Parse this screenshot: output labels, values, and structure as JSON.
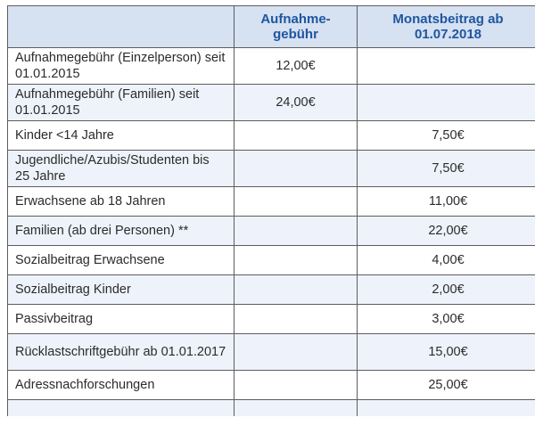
{
  "table": {
    "headers": [
      "",
      "Aufnahme-gebühr",
      "Monatsbeitrag ab 01.07.2018"
    ],
    "rows": [
      {
        "label": "Aufnahmegebühr (Einzelperson) seit 01.01.2015",
        "aufnahme": "12,00€",
        "monat": ""
      },
      {
        "label": "Aufnahmegebühr (Familien) seit 01.01.2015",
        "aufnahme": "24,00€",
        "monat": ""
      },
      {
        "label": "Kinder <14 Jahre",
        "aufnahme": "",
        "monat": "7,50€"
      },
      {
        "label": "Jugendliche/Azubis/Studenten bis 25 Jahre",
        "aufnahme": "",
        "monat": "7,50€"
      },
      {
        "label": "Erwachsene ab 18 Jahren",
        "aufnahme": "",
        "monat": "11,00€"
      },
      {
        "label": "Familien (ab drei Personen) **",
        "aufnahme": "",
        "monat": "22,00€"
      },
      {
        "label": "Sozialbeitrag Erwachsene",
        "aufnahme": "",
        "monat": "4,00€"
      },
      {
        "label": "Sozialbeitrag Kinder",
        "aufnahme": "",
        "monat": "2,00€"
      },
      {
        "label": "Passivbeitrag",
        "aufnahme": "",
        "monat": "3,00€"
      },
      {
        "label": "Rücklastschriftgebühr  ab 01.01.2017",
        "aufnahme": "",
        "monat": "15,00€"
      },
      {
        "label": "Adressnachforschungen",
        "aufnahme": "",
        "monat": "25,00€"
      }
    ]
  }
}
